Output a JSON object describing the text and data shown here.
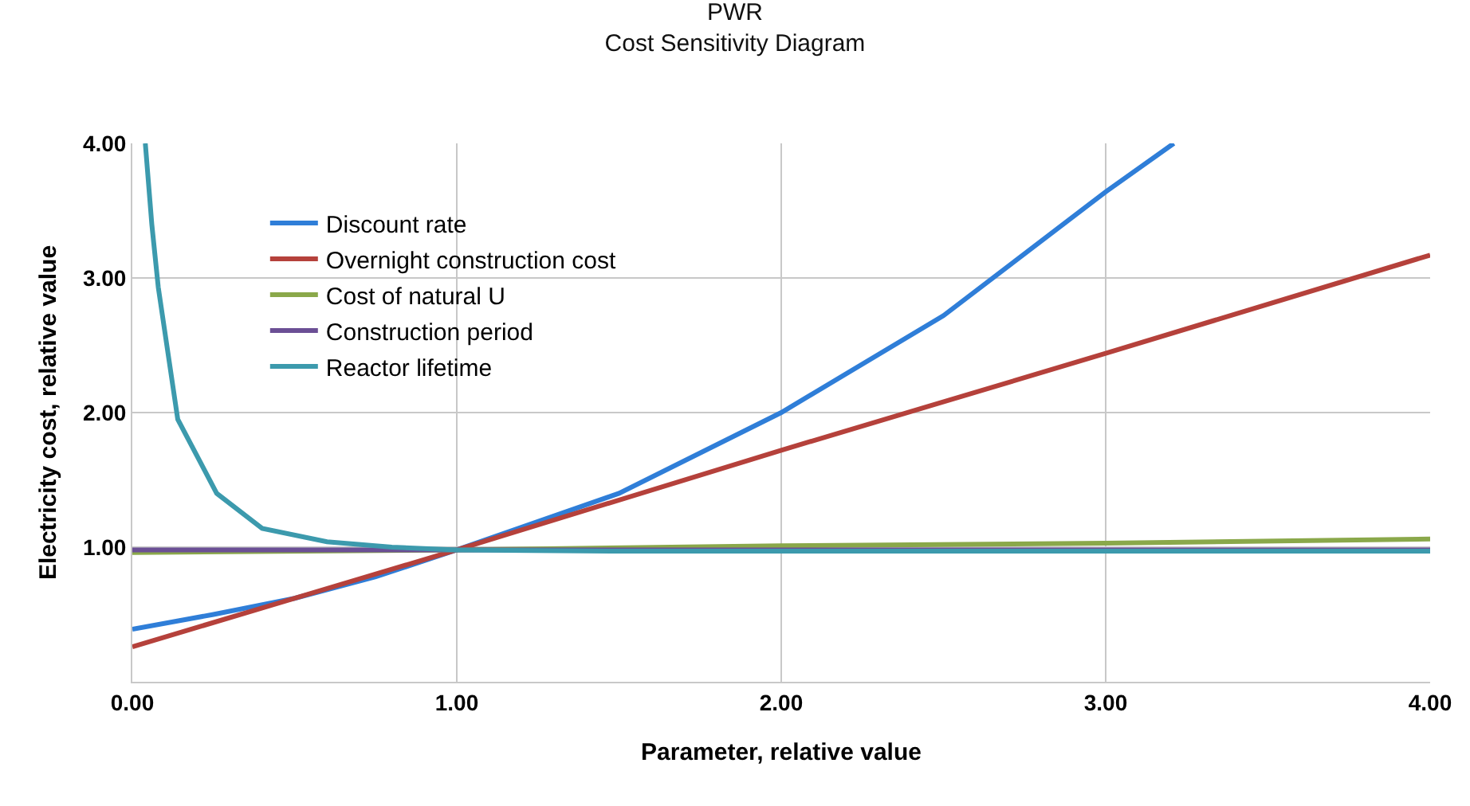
{
  "chart_data": {
    "type": "line",
    "title": "PWR",
    "subtitle": "Cost Sensitivity Diagram",
    "xlabel": "Parameter, relative value",
    "ylabel": "Electricity cost, relative value",
    "xlim": [
      0,
      4
    ],
    "ylim": [
      0,
      4
    ],
    "xticks": [
      {
        "value": 0,
        "label": "0.00"
      },
      {
        "value": 1,
        "label": "1.00"
      },
      {
        "value": 2,
        "label": "2.00"
      },
      {
        "value": 3,
        "label": "3.00"
      },
      {
        "value": 4,
        "label": "4.00"
      }
    ],
    "yticks": [
      {
        "value": 0,
        "label": null
      },
      {
        "value": 1,
        "label": "1.00"
      },
      {
        "value": 2,
        "label": "2.00"
      },
      {
        "value": 3,
        "label": "3.00"
      },
      {
        "value": 4,
        "label": "4.00"
      }
    ],
    "grid": true,
    "legend": "top left",
    "marker": "none",
    "line_style": "solid",
    "series": [
      {
        "name": "Discount rate",
        "color": "#2f7ed8",
        "x": [
          0,
          0.25,
          0.5,
          0.75,
          1,
          1.5,
          2,
          2.5,
          3,
          3.21
        ],
        "values": [
          0.39,
          0.5,
          0.62,
          0.78,
          0.98,
          1.4,
          2.0,
          2.72,
          3.64,
          4.0
        ]
      },
      {
        "name": "Overnight construction cost",
        "color": "#b5413b",
        "x": [
          0,
          1,
          2,
          3,
          4
        ],
        "values": [
          0.26,
          0.98,
          1.72,
          2.44,
          3.17
        ]
      },
      {
        "name": "Cost of natural U",
        "color": "#8aa84a",
        "x": [
          0,
          1,
          2,
          3,
          4
        ],
        "values": [
          0.96,
          0.98,
          1.01,
          1.03,
          1.06
        ]
      },
      {
        "name": "Construction period",
        "color": "#6b4f95",
        "x": [
          0,
          1,
          2,
          3,
          4
        ],
        "values": [
          0.98,
          0.98,
          0.98,
          0.98,
          0.98
        ]
      },
      {
        "name": "Reactor lifetime",
        "color": "#3c9aad",
        "x": [
          0.04,
          0.06,
          0.08,
          0.14,
          0.26,
          0.4,
          0.6,
          0.8,
          1,
          1.5,
          2,
          3,
          4
        ],
        "values": [
          4.0,
          3.4,
          2.93,
          1.95,
          1.4,
          1.14,
          1.04,
          1.0,
          0.98,
          0.97,
          0.97,
          0.97,
          0.97
        ]
      }
    ]
  }
}
